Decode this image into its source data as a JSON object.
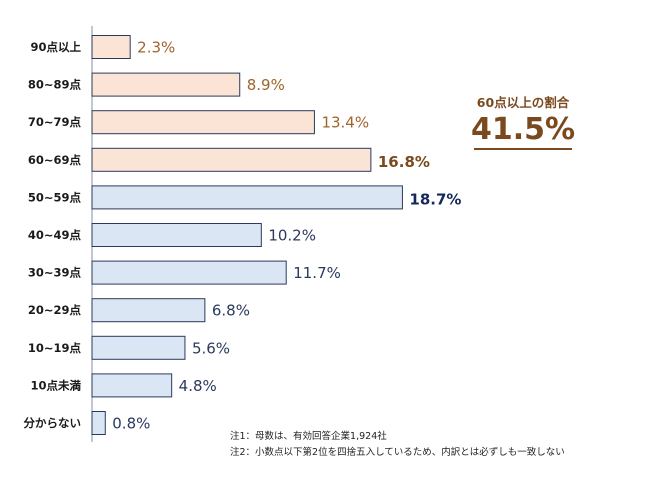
{
  "chart_data": {
    "type": "bar",
    "orientation": "horizontal",
    "categories": [
      "90点以上",
      "80~89点",
      "70~79点",
      "60~69点",
      "50~59点",
      "40~49点",
      "30~39点",
      "20~29点",
      "10~19点",
      "10点未満",
      "分からない"
    ],
    "values": [
      2.3,
      8.9,
      13.4,
      16.8,
      18.7,
      10.2,
      11.7,
      6.8,
      5.6,
      4.8,
      0.8
    ],
    "value_labels": [
      "2.3%",
      "8.9%",
      "13.4%",
      "16.8%",
      "18.7%",
      "10.2%",
      "11.7%",
      "6.8%",
      "5.6%",
      "4.8%",
      "0.8%"
    ],
    "xlim": [
      0,
      20
    ],
    "grid": false,
    "highlight_60_plus_count": 4,
    "colors": {
      "orange_fill": "#fbe3d6",
      "blue_fill": "#dae6f4",
      "bar_border": "#2b3a5c",
      "orange_text": "#a0642d",
      "orange_text_bold": "#7a4a1e",
      "blue_text": "#2b3a5c",
      "blue_text_bold": "#15285a"
    }
  },
  "callout": {
    "label": "60点以上の割合",
    "value": "41.5%"
  },
  "notes": [
    "注1：母数は、有効回答企業1,924社",
    "注2：小数点以下第2位を四捨五入しているため、内訳とは必ずしも一致しない"
  ]
}
